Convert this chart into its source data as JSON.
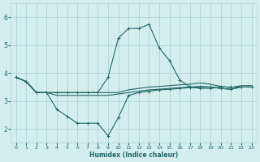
{
  "xlabel": "Humidex (Indice chaleur)",
  "xlim": [
    -0.5,
    23.5
  ],
  "ylim": [
    1.5,
    6.5
  ],
  "yticks": [
    2,
    3,
    4,
    5,
    6
  ],
  "xticks": [
    0,
    1,
    2,
    3,
    4,
    5,
    6,
    7,
    8,
    9,
    10,
    11,
    12,
    13,
    14,
    15,
    16,
    17,
    18,
    19,
    20,
    21,
    22,
    23
  ],
  "background_color": "#d4eeee",
  "grid_color": "#aed4d4",
  "line_color": "#226666",
  "lines": [
    {
      "x": [
        0,
        1,
        2,
        3,
        4,
        5,
        6,
        7,
        8,
        9,
        10,
        11,
        12,
        13,
        14,
        15,
        16,
        17,
        18,
        19,
        20,
        21,
        22,
        23
      ],
      "y": [
        3.85,
        3.7,
        3.3,
        3.3,
        3.3,
        3.3,
        3.3,
        3.3,
        3.3,
        3.3,
        3.3,
        3.4,
        3.45,
        3.5,
        3.52,
        3.55,
        3.58,
        3.6,
        3.65,
        3.6,
        3.52,
        3.48,
        3.55,
        3.55
      ],
      "marker": false,
      "lw": 0.8
    },
    {
      "x": [
        0,
        1,
        2,
        3,
        4,
        5,
        6,
        7,
        8,
        9,
        10,
        11,
        12,
        13,
        14,
        15,
        16,
        17,
        18,
        19,
        20,
        21,
        22,
        23
      ],
      "y": [
        3.85,
        3.7,
        3.3,
        3.3,
        3.2,
        3.2,
        3.2,
        3.2,
        3.2,
        3.2,
        3.25,
        3.3,
        3.35,
        3.4,
        3.42,
        3.45,
        3.48,
        3.5,
        3.52,
        3.5,
        3.45,
        3.42,
        3.5,
        3.5
      ],
      "marker": false,
      "lw": 0.8
    },
    {
      "x": [
        0,
        1,
        2,
        3,
        4,
        5,
        6,
        7,
        8,
        9,
        10,
        11,
        12,
        13,
        14,
        15,
        16,
        17,
        18,
        19,
        20,
        21,
        22,
        23
      ],
      "y": [
        3.85,
        3.7,
        3.3,
        3.3,
        3.3,
        3.3,
        3.3,
        3.3,
        3.3,
        3.85,
        5.25,
        5.6,
        5.6,
        5.75,
        4.9,
        4.45,
        3.75,
        3.5,
        3.45,
        3.45,
        3.5,
        3.5,
        3.5,
        3.5
      ],
      "marker": true,
      "lw": 0.8
    },
    {
      "x": [
        0,
        1,
        2,
        3,
        4,
        5,
        6,
        7,
        8,
        9,
        10,
        11,
        12,
        13,
        14,
        15,
        16,
        17,
        18,
        19,
        20,
        21,
        22,
        23
      ],
      "y": [
        3.85,
        3.7,
        3.3,
        3.3,
        2.7,
        2.45,
        2.2,
        2.2,
        2.2,
        1.75,
        2.4,
        3.2,
        3.3,
        3.35,
        3.4,
        3.42,
        3.45,
        3.48,
        3.5,
        3.5,
        3.45,
        3.42,
        3.5,
        3.5
      ],
      "marker": true,
      "lw": 0.8
    }
  ]
}
